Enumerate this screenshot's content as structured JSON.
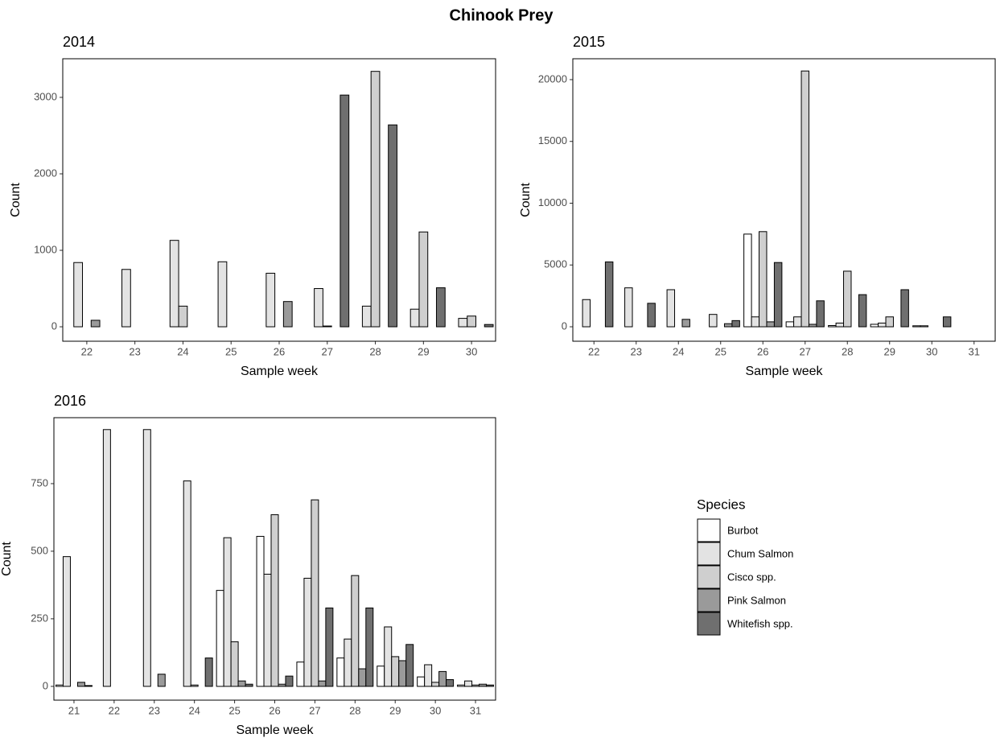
{
  "title": "Chinook Prey",
  "legend": {
    "title": "Species"
  },
  "chart_data": [
    {
      "type": "bar",
      "title": "2014",
      "x_label": "Sample week",
      "y_label": "Count",
      "categories": [
        "22",
        "23",
        "24",
        "25",
        "26",
        "27",
        "28",
        "29",
        "30"
      ],
      "ylim": [
        -189,
        3505
      ],
      "yticks": [
        0,
        1000,
        2000,
        3000
      ],
      "series": [
        {
          "name": "Burbot",
          "color": "#ffffff",
          "values": [
            0,
            0,
            0,
            0,
            0,
            0,
            0,
            0,
            0
          ]
        },
        {
          "name": "Chum Salmon",
          "color": "#e3e3e3",
          "values": [
            840,
            750,
            1130,
            850,
            700,
            500,
            270,
            230,
            110
          ]
        },
        {
          "name": "Cisco spp.",
          "color": "#cfcfcf",
          "values": [
            0,
            0,
            270,
            0,
            0,
            10,
            3340,
            1240,
            140
          ]
        },
        {
          "name": "Pink Salmon",
          "color": "#9a9a9a",
          "values": [
            85,
            0,
            0,
            0,
            330,
            0,
            0,
            0,
            0
          ]
        },
        {
          "name": "Whitefish spp.",
          "color": "#6f6f6f",
          "values": [
            0,
            0,
            0,
            0,
            0,
            3030,
            2640,
            510,
            30
          ]
        }
      ]
    },
    {
      "type": "bar",
      "title": "2015",
      "x_label": "Sample week",
      "y_label": "Count",
      "categories": [
        "22",
        "23",
        "24",
        "25",
        "26",
        "27",
        "28",
        "29",
        "30",
        "31"
      ],
      "ylim": [
        -1170,
        21690
      ],
      "yticks": [
        0,
        5000,
        10000,
        15000,
        20000
      ],
      "series": [
        {
          "name": "Burbot",
          "color": "#ffffff",
          "values": [
            0,
            0,
            0,
            0,
            7500,
            400,
            100,
            200,
            80,
            0
          ]
        },
        {
          "name": "Chum Salmon",
          "color": "#e3e3e3",
          "values": [
            2200,
            3150,
            3000,
            1000,
            800,
            800,
            300,
            300,
            80,
            0
          ]
        },
        {
          "name": "Cisco spp.",
          "color": "#cfcfcf",
          "values": [
            0,
            0,
            0,
            0,
            7700,
            20700,
            4500,
            800,
            0,
            0
          ]
        },
        {
          "name": "Pink Salmon",
          "color": "#9a9a9a",
          "values": [
            0,
            0,
            600,
            250,
            400,
            200,
            0,
            0,
            0,
            0
          ]
        },
        {
          "name": "Whitefish spp.",
          "color": "#6f6f6f",
          "values": [
            5250,
            1900,
            0,
            500,
            5200,
            2100,
            2600,
            3000,
            800,
            0
          ]
        }
      ]
    },
    {
      "type": "bar",
      "title": "2016",
      "x_label": "Sample week",
      "y_label": "Count",
      "categories": [
        "21",
        "22",
        "23",
        "24",
        "25",
        "26",
        "27",
        "28",
        "29",
        "30",
        "31"
      ],
      "ylim": [
        -51,
        994
      ],
      "yticks": [
        0,
        250,
        500,
        750
      ],
      "series": [
        {
          "name": "Burbot",
          "color": "#ffffff",
          "values": [
            5,
            0,
            0,
            0,
            355,
            555,
            90,
            105,
            75,
            35,
            5
          ]
        },
        {
          "name": "Chum Salmon",
          "color": "#e3e3e3",
          "values": [
            480,
            950,
            950,
            760,
            550,
            415,
            400,
            175,
            220,
            80,
            20
          ]
        },
        {
          "name": "Cisco spp.",
          "color": "#cfcfcf",
          "values": [
            0,
            0,
            0,
            5,
            165,
            635,
            690,
            410,
            110,
            15,
            5
          ]
        },
        {
          "name": "Pink Salmon",
          "color": "#9a9a9a",
          "values": [
            15,
            0,
            45,
            0,
            20,
            8,
            20,
            65,
            95,
            55,
            8
          ]
        },
        {
          "name": "Whitefish spp.",
          "color": "#6f6f6f",
          "values": [
            3,
            0,
            0,
            105,
            8,
            38,
            290,
            290,
            155,
            25,
            5
          ]
        }
      ]
    }
  ]
}
